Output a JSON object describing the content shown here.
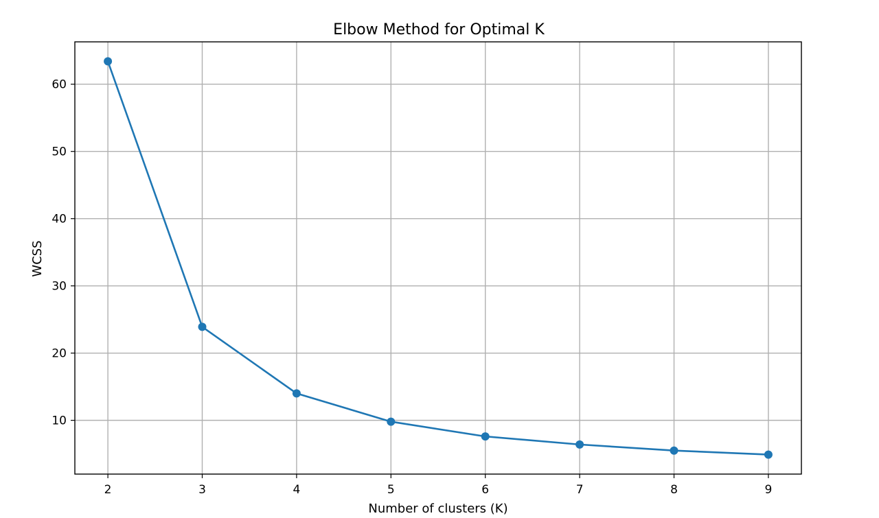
{
  "chart_data": {
    "type": "line",
    "title": "Elbow Method for Optimal K",
    "xlabel": "Number of clusters (K)",
    "ylabel": "WCSS",
    "x": [
      2,
      3,
      4,
      5,
      6,
      7,
      8,
      9
    ],
    "series": [
      {
        "values": [
          63.4,
          23.9,
          14.0,
          9.8,
          7.6,
          6.4,
          5.5,
          4.9
        ],
        "color": "#1f77b4",
        "marker": "circle"
      }
    ],
    "xticks": [
      2,
      3,
      4,
      5,
      6,
      7,
      8,
      9
    ],
    "yticks": [
      10,
      20,
      30,
      40,
      50,
      60
    ],
    "xlim": [
      1.65,
      9.35
    ],
    "ylim": [
      2.0,
      66.3
    ],
    "grid": true,
    "legend": "none"
  }
}
